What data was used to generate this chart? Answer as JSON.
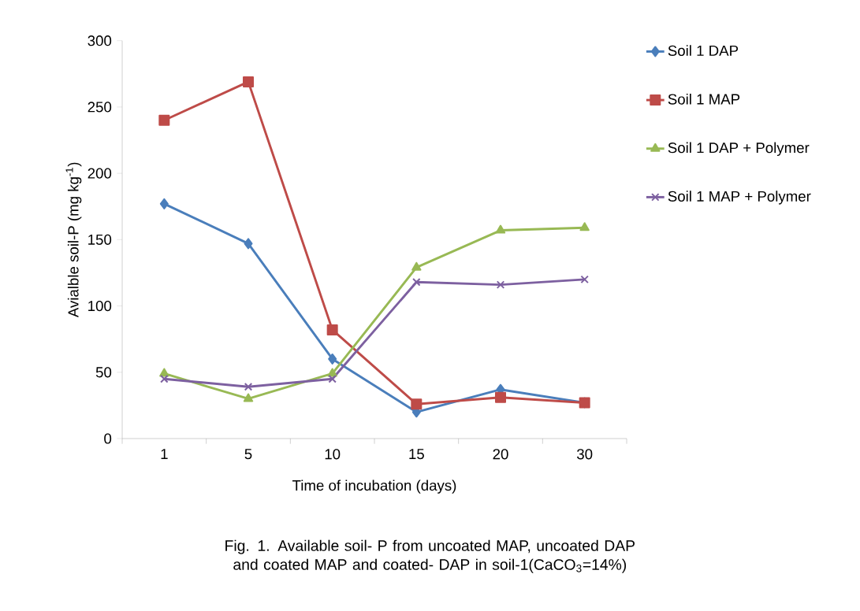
{
  "chart_data": {
    "type": "line",
    "xlabel": "Time of incubation (days)",
    "ylabel": "Avialble soil-P (mg kg$^{-1}$)",
    "categories": [
      "1",
      "5",
      "10",
      "15",
      "20",
      "30"
    ],
    "series": [
      {
        "name": "Soil 1 DAP",
        "color": "#4a7ebb",
        "marker": "diamond",
        "values": [
          177,
          147,
          60,
          20,
          37,
          27
        ]
      },
      {
        "name": "Soil 1 MAP",
        "color": "#be4b48",
        "marker": "square",
        "values": [
          240,
          269,
          82,
          26,
          31,
          27
        ]
      },
      {
        "name": "Soil 1 DAP + Polymer",
        "color": "#98b954",
        "marker": "triangle",
        "values": [
          49,
          30,
          49,
          129,
          157,
          159
        ]
      },
      {
        "name": "Soil 1 MAP + Polymer",
        "color": "#7d60a0",
        "marker": "cross",
        "values": [
          45,
          39,
          45,
          118,
          116,
          120
        ]
      }
    ],
    "ylim": [
      0,
      300
    ],
    "yticks": [
      0,
      50,
      100,
      150,
      200,
      250,
      300
    ],
    "grid": false,
    "legend": "right",
    "line_style": "solid",
    "annotations": [
      "Fig. 1. Available soil- P from uncoated MAP, uncoated DAP and coated MAP and coated- DAP in soil-1(CaCO$_{3}$=14%)"
    ]
  }
}
